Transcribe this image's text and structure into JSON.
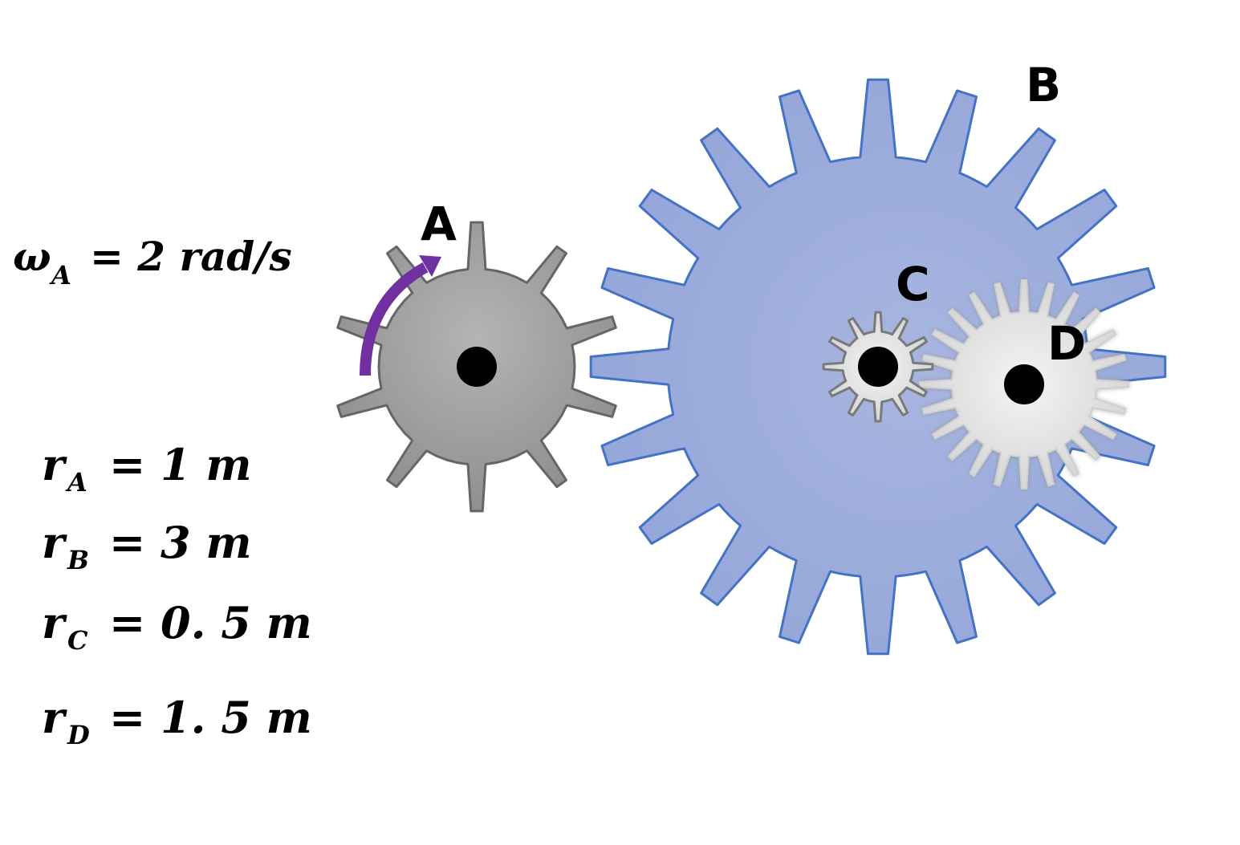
{
  "gears": {
    "A": {
      "label": "A",
      "fill": "#a3a3a3",
      "stroke": "#666666"
    },
    "B": {
      "label": "B",
      "fill": "#9fb0de",
      "stroke": "#4472c4"
    },
    "C": {
      "label": "C",
      "fill": "#e6e6e6",
      "stroke": "#7a7a7a"
    },
    "D": {
      "label": "D",
      "fill": "#e6e6e6",
      "stroke": "#cfcfcf"
    }
  },
  "rotation_arrow": {
    "color": "#7030a0"
  },
  "equations": {
    "omega": {
      "symbol": "ω",
      "sub": "A",
      "rhs": "= 2 rad/s"
    },
    "rA": {
      "symbol": "r",
      "sub": "A",
      "rhs": "= 1 m"
    },
    "rB": {
      "symbol": "r",
      "sub": "B",
      "rhs": "= 3 m"
    },
    "rC": {
      "symbol": "r",
      "sub": "C",
      "rhs": "= 0. 5 m"
    },
    "rD": {
      "symbol": "r",
      "sub": "D",
      "rhs": "= 1. 5 m"
    }
  }
}
